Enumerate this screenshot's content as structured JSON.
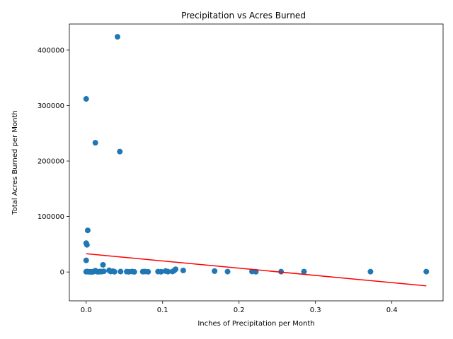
{
  "chart_data": {
    "type": "scatter",
    "title": "Precipitation vs Acres Burned",
    "xlabel": "Inches of Precipitation per Month",
    "ylabel": "Total Acres Burned per Month",
    "xlim": [
      -0.022,
      0.467
    ],
    "ylim": [
      -52000,
      447000
    ],
    "xticks": [
      0.0,
      0.1,
      0.2,
      0.3,
      0.4
    ],
    "xtick_labels": [
      "0.0",
      "0.1",
      "0.2",
      "0.3",
      "0.4"
    ],
    "yticks": [
      0,
      100000,
      200000,
      300000,
      400000
    ],
    "ytick_labels": [
      "0",
      "100000",
      "200000",
      "300000",
      "400000"
    ],
    "grid": false,
    "colors": {
      "points": "#1f77b4",
      "trendline": "#ff0000"
    },
    "points": [
      [
        0.041,
        424000
      ],
      [
        0.0,
        312000
      ],
      [
        0.012,
        233000
      ],
      [
        0.044,
        217000
      ],
      [
        0.002,
        75000
      ],
      [
        0.0,
        52000
      ],
      [
        0.001,
        49000
      ],
      [
        0.0,
        21000
      ],
      [
        0.022,
        13000
      ],
      [
        0.0,
        500
      ],
      [
        0.001,
        800
      ],
      [
        0.002,
        600
      ],
      [
        0.004,
        300
      ],
      [
        0.006,
        400
      ],
      [
        0.008,
        200
      ],
      [
        0.01,
        1000
      ],
      [
        0.012,
        2500
      ],
      [
        0.014,
        700
      ],
      [
        0.016,
        300
      ],
      [
        0.018,
        800
      ],
      [
        0.02,
        600
      ],
      [
        0.023,
        1200
      ],
      [
        0.03,
        3000
      ],
      [
        0.032,
        900
      ],
      [
        0.035,
        1500
      ],
      [
        0.037,
        500
      ],
      [
        0.045,
        800
      ],
      [
        0.053,
        600
      ],
      [
        0.056,
        400
      ],
      [
        0.06,
        900
      ],
      [
        0.063,
        300
      ],
      [
        0.074,
        600
      ],
      [
        0.077,
        900
      ],
      [
        0.081,
        400
      ],
      [
        0.094,
        700
      ],
      [
        0.098,
        500
      ],
      [
        0.104,
        1800
      ],
      [
        0.107,
        600
      ],
      [
        0.113,
        900
      ],
      [
        0.115,
        2500
      ],
      [
        0.117,
        5000
      ],
      [
        0.127,
        2800
      ],
      [
        0.168,
        1600
      ],
      [
        0.185,
        700
      ],
      [
        0.217,
        900
      ],
      [
        0.222,
        500
      ],
      [
        0.255,
        600
      ],
      [
        0.285,
        700
      ],
      [
        0.372,
        600
      ],
      [
        0.445,
        700
      ]
    ],
    "trendline": {
      "x": [
        0.0,
        0.445
      ],
      "y": [
        33000,
        -25000
      ]
    }
  }
}
